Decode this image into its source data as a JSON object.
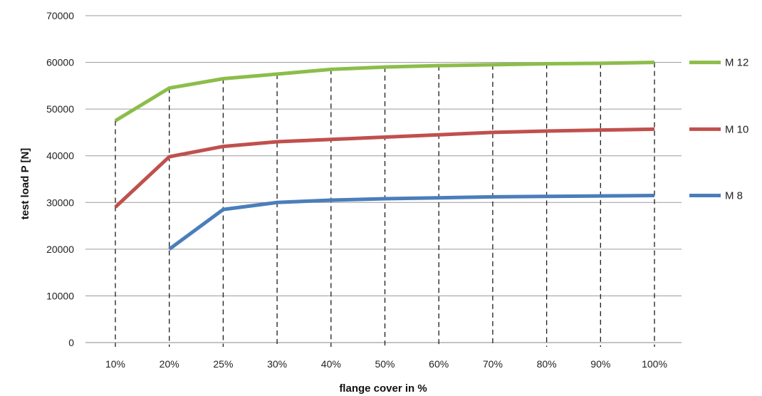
{
  "chart_data": {
    "type": "line",
    "categories": [
      "10%",
      "20%",
      "25%",
      "30%",
      "40%",
      "50%",
      "60%",
      "70%",
      "80%",
      "90%",
      "100%"
    ],
    "xlabel": "flange cover in %",
    "ylabel": "test load P [N]",
    "ylim": [
      0,
      70000
    ],
    "yticks": [
      0,
      10000,
      20000,
      30000,
      40000,
      50000,
      60000,
      70000
    ],
    "grid": "horizontal gridlines plus dashed vertical drop lines at each category",
    "legend_position": "right",
    "series": [
      {
        "name": "M 12",
        "color": "#8cbd4a",
        "values": [
          47500,
          54500,
          56500,
          57500,
          58500,
          59000,
          59300,
          59500,
          59700,
          59800,
          60000
        ]
      },
      {
        "name": "M 10",
        "color": "#c0504d",
        "values": [
          29000,
          39800,
          42000,
          43000,
          43500,
          44000,
          44500,
          45000,
          45300,
          45500,
          45700
        ]
      },
      {
        "name": "M 8",
        "color": "#4a7ebb",
        "values": [
          null,
          20000,
          28500,
          30000,
          30500,
          30800,
          31000,
          31200,
          31300,
          31400,
          31500
        ]
      }
    ]
  }
}
